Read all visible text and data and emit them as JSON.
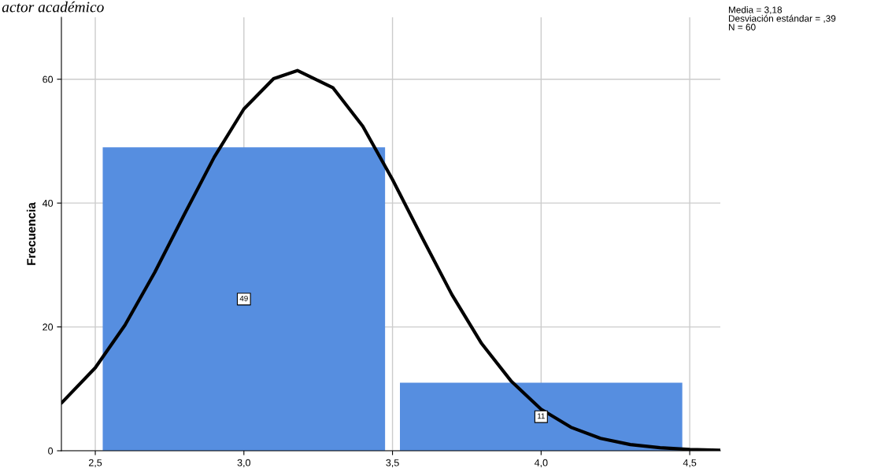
{
  "chart_data": {
    "type": "histogram",
    "title": "actor académico",
    "ylabel": "Frecuencia",
    "bins": [
      2.5,
      3.5,
      4.5
    ],
    "values": [
      49,
      11
    ],
    "color": "#568ee0",
    "value_labels": [
      "49",
      "11"
    ],
    "series": [
      {
        "type": "line",
        "color": "#000000",
        "x": [
          2.386,
          2.5,
          2.6,
          2.7,
          2.8,
          2.9,
          3.0,
          3.1,
          3.18,
          3.3,
          3.4,
          3.5,
          3.6,
          3.7,
          3.8,
          3.9,
          4.0,
          4.1,
          4.2,
          4.3,
          4.4,
          4.5,
          4.6
        ],
        "values": [
          7.7,
          13.4,
          20.3,
          28.8,
          38.2,
          47.4,
          55.2,
          60.1,
          61.4,
          58.6,
          52.4,
          43.8,
          34.4,
          25.2,
          17.3,
          11.2,
          6.7,
          3.8,
          2.0,
          1.0,
          0.5,
          0.2,
          0.1
        ]
      }
    ],
    "xlim": [
      2.386,
      4.603
    ],
    "ylim": [
      0,
      70
    ],
    "xticks": [
      {
        "value": 2.5,
        "label": "2,5"
      },
      {
        "value": 3.0,
        "label": "3,0"
      },
      {
        "value": 3.5,
        "label": "3,5"
      },
      {
        "value": 4.0,
        "label": "4,0"
      },
      {
        "value": 4.5,
        "label": "4,5"
      }
    ],
    "yticks": [
      0,
      20,
      40,
      60
    ],
    "grid": true,
    "annotations": [
      "Media = 3,18",
      "Desviación estándar = ,39",
      "N = 60"
    ]
  }
}
